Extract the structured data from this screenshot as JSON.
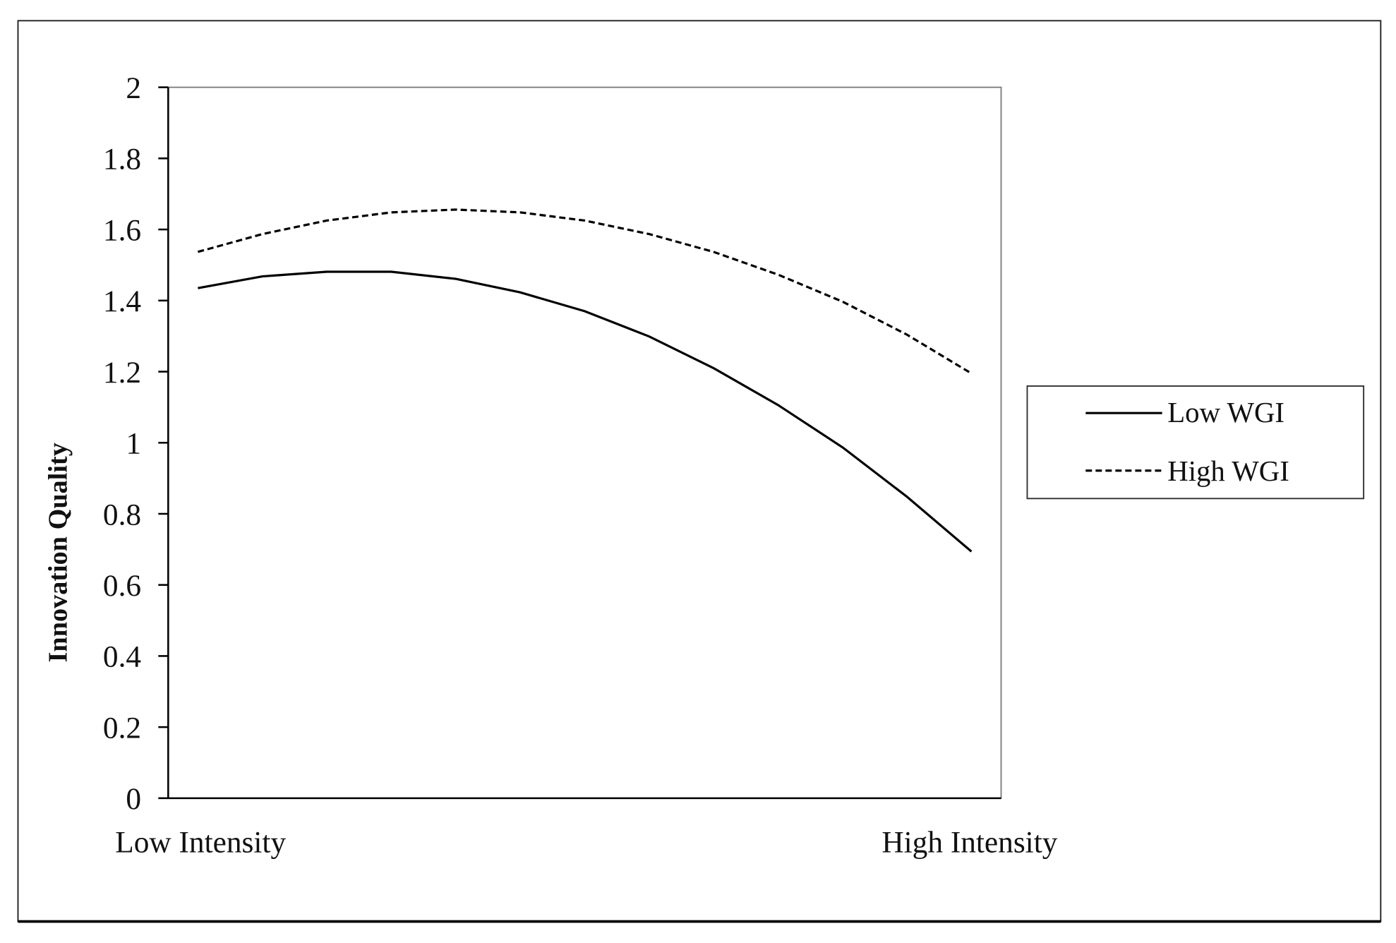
{
  "chart_data": {
    "type": "line",
    "title": "",
    "xlabel": "",
    "ylabel": "Innovation Quality",
    "x_tick_labels": [
      "Low Intensity",
      "High Intensity"
    ],
    "y_ticks": [
      0,
      0.2,
      0.4,
      0.6,
      0.8,
      1,
      1.2,
      1.4,
      1.6,
      1.8,
      2
    ],
    "y_tick_labels": [
      "0",
      "0.2",
      "0.4",
      "0.6",
      "0.8",
      "1",
      "1.2",
      "1.4",
      "1.6",
      "1.8",
      "2"
    ],
    "ylim": [
      0,
      2
    ],
    "grid": false,
    "legend_position": "right",
    "x": [
      0,
      1,
      2,
      3,
      4,
      5,
      6,
      7,
      8,
      9,
      10,
      11,
      12
    ],
    "series": [
      {
        "name": "Low WGI",
        "style": "solid",
        "color": "#000000",
        "values": [
          1.435,
          1.468,
          1.481,
          1.481,
          1.461,
          1.423,
          1.37,
          1.299,
          1.21,
          1.106,
          0.987,
          0.848,
          0.694
        ]
      },
      {
        "name": "High WGI",
        "style": "dashed",
        "color": "#000000",
        "values": [
          1.537,
          1.587,
          1.625,
          1.648,
          1.656,
          1.648,
          1.625,
          1.587,
          1.537,
          1.473,
          1.397,
          1.304,
          1.195
        ]
      }
    ]
  },
  "legend": {
    "items": [
      {
        "label": "Low WGI",
        "style": "solid"
      },
      {
        "label": "High WGI",
        "style": "dashed"
      }
    ]
  },
  "colors": {
    "line": "#000000",
    "frame": "#000000",
    "plot_border": "#7f7f7f",
    "background": "#ffffff"
  }
}
